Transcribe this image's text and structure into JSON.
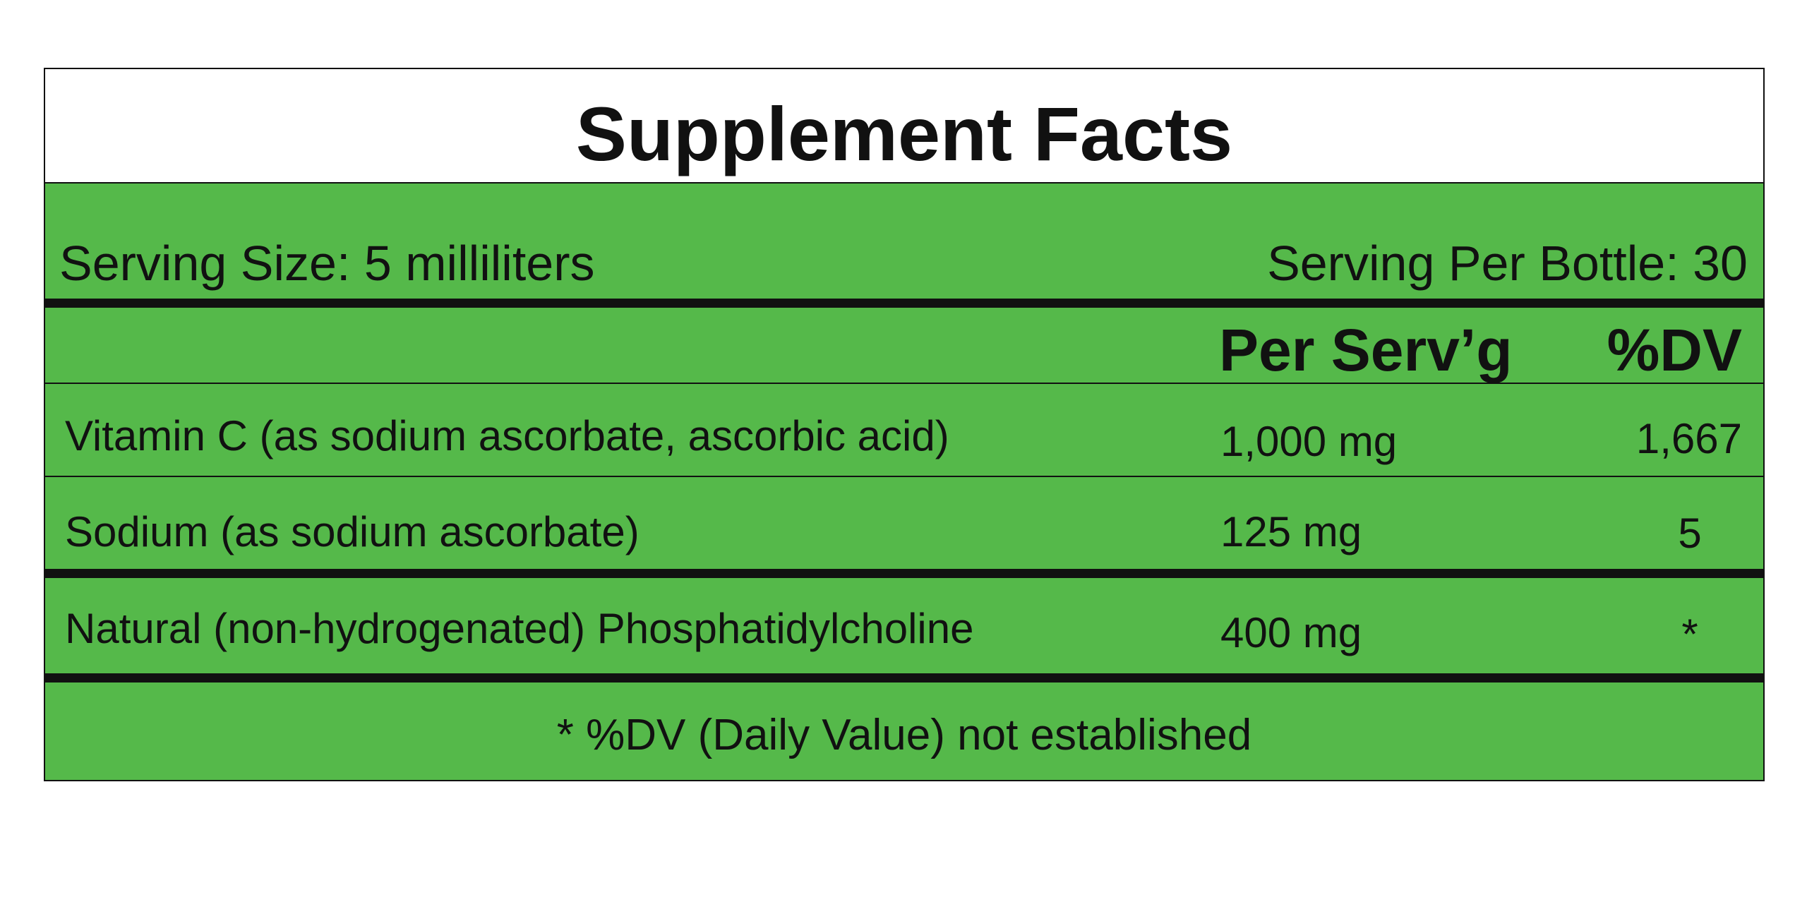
{
  "header": {
    "title": "Supplement Facts"
  },
  "serving": {
    "size": "Serving Size: 5 milliliters",
    "per_bottle": "Serving Per Bottle: 30"
  },
  "columns": {
    "amount": "Per Serv’g",
    "dv": "%DV"
  },
  "rows": [
    {
      "name": "Vitamin C (as sodium ascorbate, ascorbic acid)",
      "amount": "1,000 mg",
      "dv": "1,667"
    },
    {
      "name": "Sodium (as sodium ascorbate)",
      "amount": "125 mg",
      "dv": "5"
    },
    {
      "name": "Natural (non-hydrogenated) Phosphatidylcholine",
      "amount": "400 mg",
      "dv": "*"
    }
  ],
  "footnote": "* %DV (Daily Value) not established"
}
